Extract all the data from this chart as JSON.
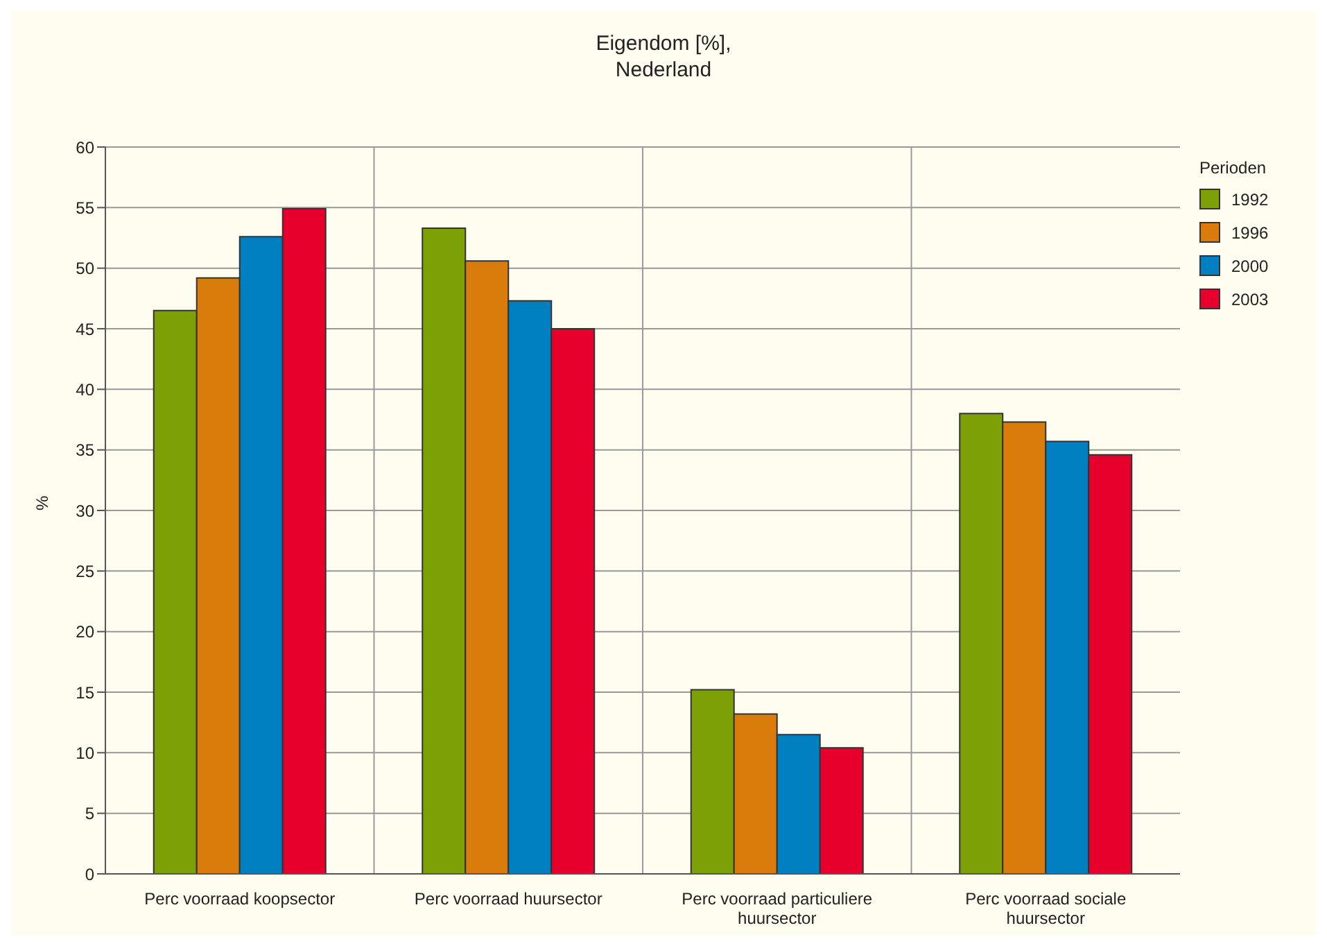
{
  "chart_data": {
    "type": "bar",
    "title": "Eigendom [%],",
    "subtitle": "Nederland",
    "ylabel": "%",
    "legend_title": "Perioden",
    "categories": [
      "Perc voorraad koopsector",
      "Perc voorraad huursector",
      "Perc voorraad particuliere huursector",
      "Perc voorraad sociale huursector"
    ],
    "series": [
      {
        "name": "1992",
        "color": "#7ca005",
        "values": [
          46.5,
          53.3,
          15.2,
          38.0
        ]
      },
      {
        "name": "1996",
        "color": "#d97c0c",
        "values": [
          49.2,
          50.6,
          13.2,
          37.3
        ]
      },
      {
        "name": "2000",
        "color": "#0080c0",
        "values": [
          52.6,
          47.3,
          11.5,
          35.7
        ]
      },
      {
        "name": "2003",
        "color": "#e8002c",
        "values": [
          54.9,
          45.0,
          10.4,
          34.6
        ]
      }
    ],
    "ylim": [
      0,
      60
    ],
    "yticks": [
      0,
      5,
      10,
      15,
      20,
      25,
      30,
      35,
      40,
      45,
      50,
      55,
      60
    ],
    "grid": true,
    "legend": "right"
  }
}
